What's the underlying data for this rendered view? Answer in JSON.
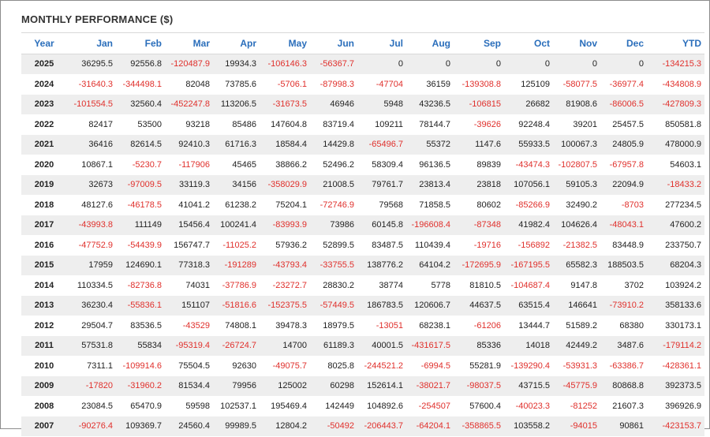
{
  "title": "MONTHLY PERFORMANCE ($)",
  "colors": {
    "header_text": "#2a6ebb",
    "negative": "#e0302c",
    "stripe": "#eeeeee"
  },
  "columns": [
    "Year",
    "Jan",
    "Feb",
    "Mar",
    "Apr",
    "May",
    "Jun",
    "Jul",
    "Aug",
    "Sep",
    "Oct",
    "Nov",
    "Dec",
    "YTD"
  ],
  "rows": [
    [
      "2025",
      "36295.5",
      "92556.8",
      "-120487.9",
      "19934.3",
      "-106146.3",
      "-56367.7",
      "0",
      "0",
      "0",
      "0",
      "0",
      "0",
      "-134215.3"
    ],
    [
      "2024",
      "-31640.3",
      "-344498.1",
      "82048",
      "73785.6",
      "-5706.1",
      "-87998.3",
      "-47704",
      "36159",
      "-139308.8",
      "125109",
      "-58077.5",
      "-36977.4",
      "-434808.9"
    ],
    [
      "2023",
      "-101554.5",
      "32560.4",
      "-452247.8",
      "113206.5",
      "-31673.5",
      "46946",
      "5948",
      "43236.5",
      "-106815",
      "26682",
      "81908.6",
      "-86006.5",
      "-427809.3"
    ],
    [
      "2022",
      "82417",
      "53500",
      "93218",
      "85486",
      "147604.8",
      "83719.4",
      "109211",
      "78144.7",
      "-39626",
      "92248.4",
      "39201",
      "25457.5",
      "850581.8"
    ],
    [
      "2021",
      "36416",
      "82614.5",
      "92410.3",
      "61716.3",
      "18584.4",
      "14429.8",
      "-65496.7",
      "55372",
      "1147.6",
      "55933.5",
      "100067.3",
      "24805.9",
      "478000.9"
    ],
    [
      "2020",
      "10867.1",
      "-5230.7",
      "-117906",
      "45465",
      "38866.2",
      "52496.2",
      "58309.4",
      "96136.5",
      "89839",
      "-43474.3",
      "-102807.5",
      "-67957.8",
      "54603.1"
    ],
    [
      "2019",
      "32673",
      "-97009.5",
      "33119.3",
      "34156",
      "-358029.9",
      "21008.5",
      "79761.7",
      "23813.4",
      "23818",
      "107056.1",
      "59105.3",
      "22094.9",
      "-18433.2"
    ],
    [
      "2018",
      "48127.6",
      "-46178.5",
      "41041.2",
      "61238.2",
      "75204.1",
      "-72746.9",
      "79568",
      "71858.5",
      "80602",
      "-85266.9",
      "32490.2",
      "-8703",
      "277234.5"
    ],
    [
      "2017",
      "-43993.8",
      "111149",
      "15456.4",
      "100241.4",
      "-83993.9",
      "73986",
      "60145.8",
      "-196608.4",
      "-87348",
      "41982.4",
      "104626.4",
      "-48043.1",
      "47600.2"
    ],
    [
      "2016",
      "-47752.9",
      "-54439.9",
      "156747.7",
      "-11025.2",
      "57936.2",
      "52899.5",
      "83487.5",
      "110439.4",
      "-19716",
      "-156892",
      "-21382.5",
      "83448.9",
      "233750.7"
    ],
    [
      "2015",
      "17959",
      "124690.1",
      "77318.3",
      "-191289",
      "-43793.4",
      "-33755.5",
      "138776.2",
      "64104.2",
      "-172695.9",
      "-167195.5",
      "65582.3",
      "188503.5",
      "68204.3"
    ],
    [
      "2014",
      "110334.5",
      "-82736.8",
      "74031",
      "-37786.9",
      "-23272.7",
      "28830.2",
      "38774",
      "5778",
      "81810.5",
      "-104687.4",
      "9147.8",
      "3702",
      "103924.2"
    ],
    [
      "2013",
      "36230.4",
      "-55836.1",
      "151107",
      "-51816.6",
      "-152375.5",
      "-57449.5",
      "186783.5",
      "120606.7",
      "44637.5",
      "63515.4",
      "146641",
      "-73910.2",
      "358133.6"
    ],
    [
      "2012",
      "29504.7",
      "83536.5",
      "-43529",
      "74808.1",
      "39478.3",
      "18979.5",
      "-13051",
      "68238.1",
      "-61206",
      "13444.7",
      "51589.2",
      "68380",
      "330173.1"
    ],
    [
      "2011",
      "57531.8",
      "55834",
      "-95319.4",
      "-26724.7",
      "14700",
      "61189.3",
      "40001.5",
      "-431617.5",
      "85336",
      "14018",
      "42449.2",
      "3487.6",
      "-179114.2"
    ],
    [
      "2010",
      "7311.1",
      "-109914.6",
      "75504.5",
      "92630",
      "-49075.7",
      "8025.8",
      "-244521.2",
      "-6994.5",
      "55281.9",
      "-139290.4",
      "-53931.3",
      "-63386.7",
      "-428361.1"
    ],
    [
      "2009",
      "-17820",
      "-31960.2",
      "81534.4",
      "79956",
      "125002",
      "60298",
      "152614.1",
      "-38021.7",
      "-98037.5",
      "43715.5",
      "-45775.9",
      "80868.8",
      "392373.5"
    ],
    [
      "2008",
      "23084.5",
      "65470.9",
      "59598",
      "102537.1",
      "195469.4",
      "142449",
      "104892.6",
      "-254507",
      "57600.4",
      "-40023.3",
      "-81252",
      "21607.3",
      "396926.9"
    ],
    [
      "2007",
      "-90276.4",
      "109369.7",
      "24560.4",
      "99989.5",
      "12804.2",
      "-50492",
      "-206443.7",
      "-64204.1",
      "-358865.5",
      "103558.2",
      "-94015",
      "90861",
      "-423153.7"
    ]
  ]
}
